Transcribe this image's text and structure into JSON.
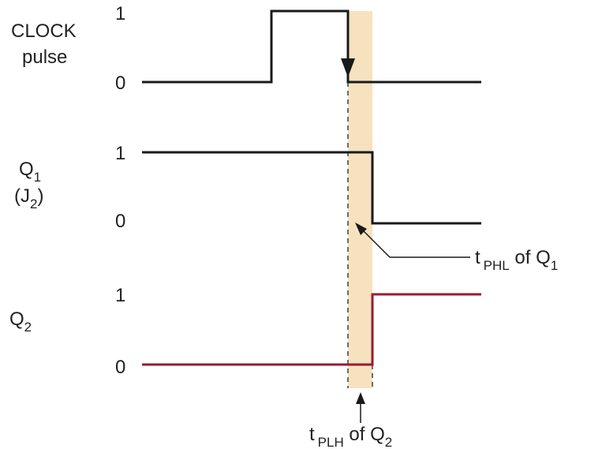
{
  "signals": {
    "clock": {
      "label_line1": "CLOCK",
      "label_line2": "pulse",
      "high": "1",
      "low": "0"
    },
    "q1": {
      "label": "Q",
      "label_sub": "1",
      "alias_open": "(J",
      "alias_sub": "2",
      "alias_close": ")",
      "high": "1",
      "low": "0"
    },
    "q2": {
      "label": "Q",
      "label_sub": "2",
      "high": "1",
      "low": "0"
    }
  },
  "annotations": {
    "tphl": {
      "t": "t",
      "sub": "PHL",
      "of": " of Q",
      "of_sub": "1"
    },
    "tplh": {
      "t": "t",
      "sub": "PLH",
      "of": " of Q",
      "of_sub": "2"
    }
  },
  "colors": {
    "trace": "#1a1a1a",
    "q2_trace": "#9b1b30",
    "delay_band": "#f7e2c0",
    "text": "#222222"
  }
}
